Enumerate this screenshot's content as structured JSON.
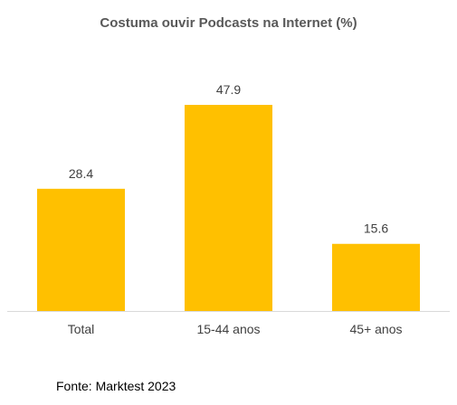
{
  "chart_data": {
    "type": "bar",
    "title": "Costuma ouvir Podcasts na Internet (%)",
    "categories": [
      "Total",
      "15-44 anos",
      "45+ anos"
    ],
    "values": [
      28.4,
      47.9,
      15.6
    ],
    "value_labels": [
      "28.4",
      "47.9",
      "15.6"
    ],
    "xlabel": "",
    "ylabel": "",
    "ylim": [
      0,
      47.9
    ],
    "grid": false,
    "bar_color": "#FFC000",
    "axis_color": "#D9D9D9"
  },
  "source": "Fonte: Marktest 2023"
}
